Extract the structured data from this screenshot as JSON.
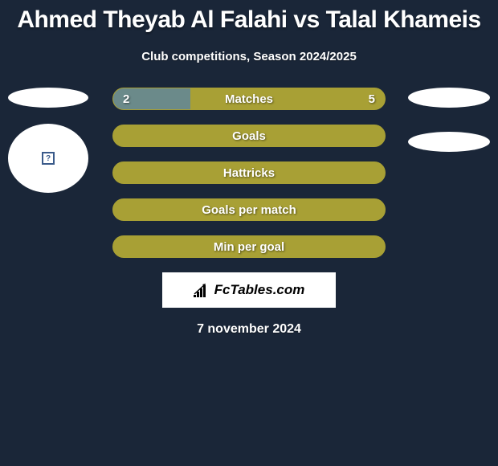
{
  "title": "Ahmed Theyab Al Falahi vs Talal Khameis",
  "subtitle": "Club competitions, Season 2024/2025",
  "date": "7 november 2024",
  "logo_text": "FcTables.com",
  "colors": {
    "background": "#1a2638",
    "bar_primary": "#a8a035",
    "bar_left_fill": "#6b8a8a",
    "text": "#ffffff",
    "logo_bg": "#ffffff",
    "logo_text": "#000000"
  },
  "bars": [
    {
      "label": "Matches",
      "left_val": "2",
      "right_val": "5",
      "left_pct": 28.5,
      "show_vals": true
    },
    {
      "label": "Goals",
      "left_val": "",
      "right_val": "",
      "left_pct": 0,
      "show_vals": false
    },
    {
      "label": "Hattricks",
      "left_val": "",
      "right_val": "",
      "left_pct": 0,
      "show_vals": false
    },
    {
      "label": "Goals per match",
      "left_val": "",
      "right_val": "",
      "left_pct": 0,
      "show_vals": false
    },
    {
      "label": "Min per goal",
      "left_val": "",
      "right_val": "",
      "left_pct": 0,
      "show_vals": false
    }
  ],
  "avatar_placeholder": "?"
}
